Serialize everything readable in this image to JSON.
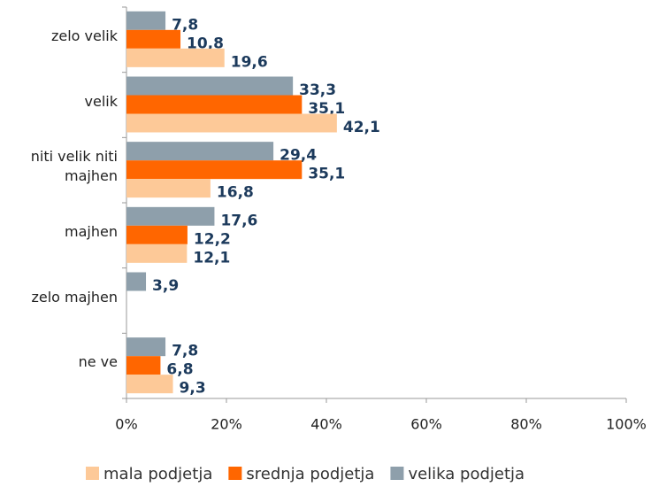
{
  "chart_data": {
    "type": "hbar",
    "categories": [
      "zelo velik",
      "velik",
      "niti velik niti majhen",
      "majhen",
      "zelo majhen",
      "ne ve"
    ],
    "series": [
      {
        "name": "mala podjetja",
        "color": "#fdc998",
        "values": [
          19.6,
          42.1,
          16.8,
          12.1,
          null,
          9.3
        ],
        "value_labels": [
          "19,6",
          "42,1",
          "16,8",
          "12,1",
          null,
          "9,3"
        ]
      },
      {
        "name": "srednja podjetja",
        "color": "#ff6600",
        "values": [
          10.8,
          35.1,
          35.1,
          12.2,
          null,
          6.8
        ],
        "value_labels": [
          "10,8",
          "35,1",
          "35,1",
          "12,2",
          null,
          "6,8"
        ]
      },
      {
        "name": "velika podjetja",
        "color": "#8e9fab",
        "values": [
          7.8,
          33.3,
          29.4,
          17.6,
          3.9,
          7.8
        ],
        "value_labels": [
          "7,8",
          "33,3",
          "29,4",
          "17,6",
          "3,9",
          "7,8"
        ]
      }
    ],
    "xlim": [
      0,
      100
    ],
    "xticks": [
      {
        "value": 0,
        "label": "0%"
      },
      {
        "value": 20,
        "label": "20%"
      },
      {
        "value": 40,
        "label": "40%"
      },
      {
        "value": 60,
        "label": "60%"
      },
      {
        "value": 80,
        "label": "80%"
      },
      {
        "value": 100,
        "label": "100%"
      }
    ],
    "legend": "bottom"
  }
}
